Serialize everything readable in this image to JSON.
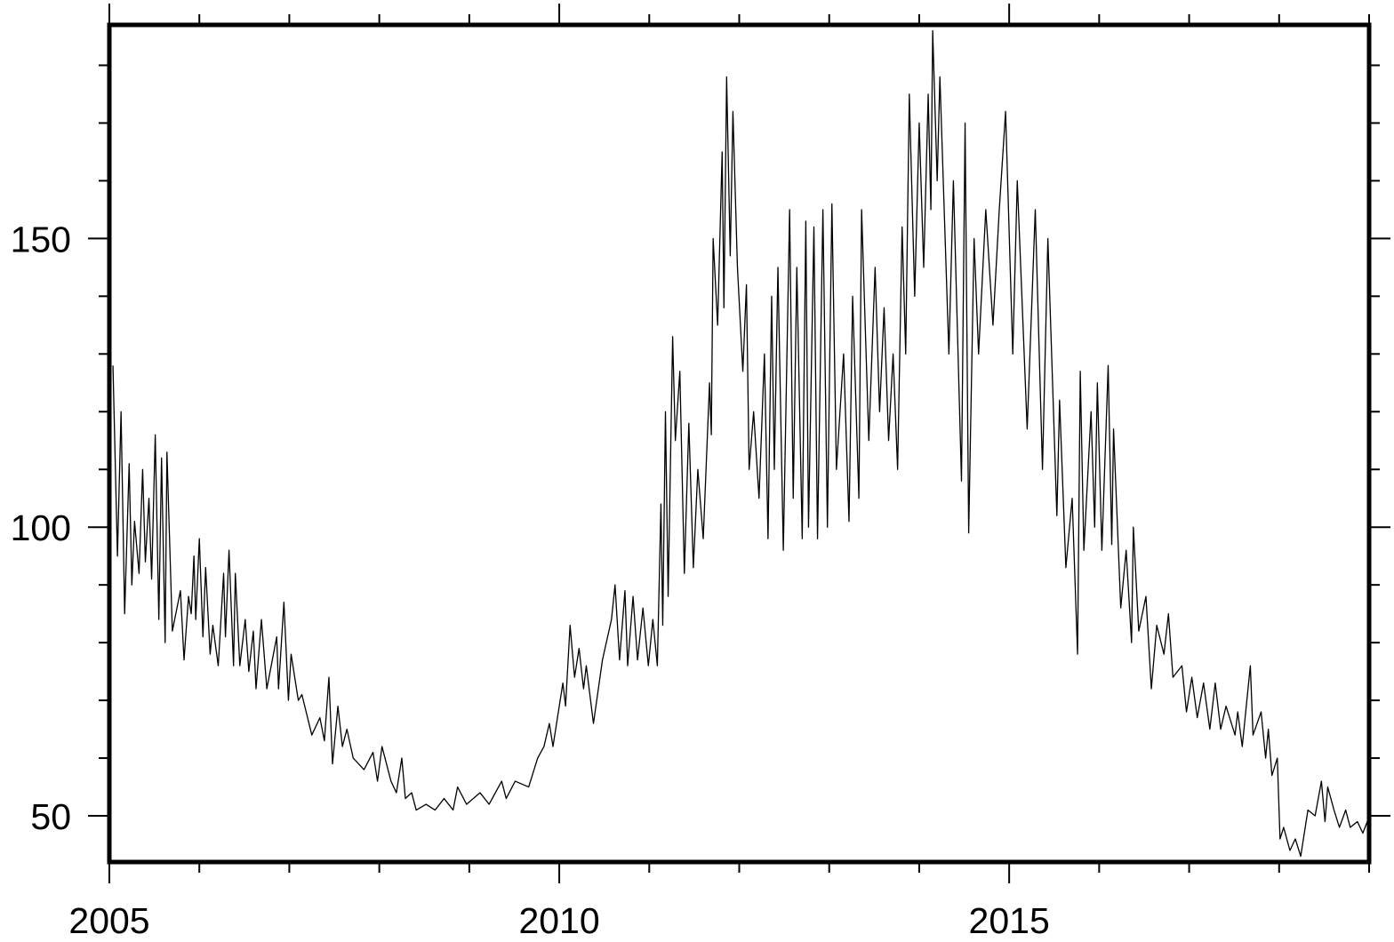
{
  "chart_data": {
    "type": "line",
    "x": [
      2005.04,
      2005.09,
      2005.13,
      2005.17,
      2005.22,
      2005.25,
      2005.28,
      2005.33,
      2005.37,
      2005.4,
      2005.44,
      2005.47,
      2005.51,
      2005.55,
      2005.58,
      2005.62,
      2005.64,
      2005.7,
      2005.79,
      2005.83,
      2005.88,
      2005.91,
      2005.94,
      2005.96,
      2006.0,
      2006.04,
      2006.07,
      2006.12,
      2006.15,
      2006.21,
      2006.27,
      2006.29,
      2006.33,
      2006.38,
      2006.4,
      2006.45,
      2006.51,
      2006.55,
      2006.6,
      2006.63,
      2006.69,
      2006.75,
      2006.86,
      2006.88,
      2006.94,
      2006.99,
      2007.02,
      2007.1,
      2007.14,
      2007.25,
      2007.34,
      2007.39,
      2007.44,
      2007.48,
      2007.54,
      2007.59,
      2007.64,
      2007.71,
      2007.83,
      2007.93,
      2007.98,
      2008.03,
      2008.13,
      2008.19,
      2008.25,
      2008.29,
      2008.36,
      2008.41,
      2008.52,
      2008.62,
      2008.72,
      2008.82,
      2008.87,
      2008.97,
      2009.12,
      2009.22,
      2009.36,
      2009.41,
      2009.51,
      2009.66,
      2009.76,
      2009.83,
      2009.89,
      2009.93,
      2010.04,
      2010.07,
      2010.12,
      2010.17,
      2010.22,
      2010.27,
      2010.3,
      2010.38,
      2010.48,
      2010.58,
      2010.62,
      2010.67,
      2010.73,
      2010.76,
      2010.82,
      2010.87,
      2010.93,
      2010.99,
      2011.04,
      2011.09,
      2011.13,
      2011.15,
      2011.18,
      2011.21,
      2011.26,
      2011.29,
      2011.34,
      2011.39,
      2011.44,
      2011.49,
      2011.54,
      2011.6,
      2011.67,
      2011.69,
      2011.71,
      2011.76,
      2011.81,
      2011.83,
      2011.86,
      2011.9,
      2011.93,
      2011.98,
      2012.04,
      2012.08,
      2012.11,
      2012.16,
      2012.22,
      2012.28,
      2012.32,
      2012.36,
      2012.39,
      2012.43,
      2012.49,
      2012.56,
      2012.6,
      2012.64,
      2012.7,
      2012.74,
      2012.77,
      2012.83,
      2012.87,
      2012.93,
      2012.98,
      2013.03,
      2013.08,
      2013.16,
      2013.22,
      2013.26,
      2013.33,
      2013.36,
      2013.44,
      2013.51,
      2013.56,
      2013.61,
      2013.66,
      2013.71,
      2013.76,
      2013.81,
      2013.85,
      2013.89,
      2013.95,
      2014.0,
      2014.05,
      2014.1,
      2014.13,
      2014.15,
      2014.2,
      2014.23,
      2014.33,
      2014.38,
      2014.47,
      2014.51,
      2014.55,
      2014.61,
      2014.66,
      2014.74,
      2014.82,
      2014.89,
      2014.96,
      2015.04,
      2015.09,
      2015.2,
      2015.29,
      2015.37,
      2015.43,
      2015.53,
      2015.56,
      2015.63,
      2015.7,
      2015.76,
      2015.79,
      2015.83,
      2015.91,
      2015.95,
      2015.98,
      2016.03,
      2016.1,
      2016.14,
      2016.16,
      2016.24,
      2016.3,
      2016.36,
      2016.38,
      2016.44,
      2016.52,
      2016.58,
      2016.64,
      2016.72,
      2016.77,
      2016.82,
      2016.92,
      2016.97,
      2017.03,
      2017.09,
      2017.16,
      2017.23,
      2017.29,
      2017.35,
      2017.41,
      2017.51,
      2017.54,
      2017.59,
      2017.68,
      2017.71,
      2017.8,
      2017.85,
      2017.88,
      2017.92,
      2017.98,
      2018.01,
      2018.05,
      2018.12,
      2018.18,
      2018.24,
      2018.32,
      2018.4,
      2018.47,
      2018.51,
      2018.54,
      2018.61,
      2018.67,
      2018.74,
      2018.79,
      2018.87,
      2018.93,
      2018.98
    ],
    "values": [
      128,
      95,
      120,
      85,
      111,
      90,
      101,
      92,
      110,
      94,
      105,
      91,
      116,
      84,
      112,
      80,
      113,
      82,
      89,
      77,
      88,
      85,
      95,
      84,
      98,
      81,
      93,
      78,
      83,
      76,
      92,
      81,
      96,
      76,
      92,
      76,
      84,
      75,
      82,
      72,
      84,
      72,
      81,
      72,
      87,
      70,
      78,
      70,
      71,
      64,
      67,
      63,
      74,
      59,
      69,
      62,
      65,
      60,
      58,
      61,
      56,
      62,
      56,
      54,
      60,
      53,
      54,
      51,
      52,
      51,
      53,
      51,
      55,
      52,
      54,
      52,
      56,
      53,
      56,
      55,
      60,
      62,
      66,
      62,
      73,
      69,
      83,
      74,
      79,
      72,
      76,
      66,
      77,
      84,
      90,
      77,
      89,
      76,
      88,
      77,
      86,
      76,
      84,
      76,
      104,
      83,
      120,
      88,
      133,
      115,
      127,
      92,
      118,
      93,
      110,
      98,
      125,
      116,
      150,
      135,
      165,
      138,
      178,
      147,
      172,
      145,
      127,
      142,
      110,
      120,
      105,
      130,
      98,
      140,
      110,
      145,
      96,
      155,
      105,
      145,
      98,
      153,
      100,
      152,
      98,
      155,
      100,
      156,
      110,
      130,
      101,
      140,
      105,
      155,
      115,
      145,
      120,
      138,
      115,
      130,
      110,
      152,
      130,
      175,
      140,
      170,
      145,
      175,
      155,
      186,
      160,
      178,
      130,
      160,
      108,
      170,
      99,
      150,
      130,
      155,
      135,
      155,
      172,
      130,
      160,
      117,
      155,
      110,
      150,
      102,
      122,
      93,
      105,
      78,
      127,
      96,
      120,
      100,
      125,
      96,
      128,
      97,
      117,
      86,
      96,
      80,
      100,
      82,
      88,
      72,
      83,
      78,
      85,
      74,
      76,
      68,
      74,
      67,
      73,
      65,
      73,
      65,
      69,
      64,
      68,
      62,
      76,
      64,
      68,
      60,
      65,
      57,
      60,
      46,
      48,
      44,
      46,
      43,
      51,
      50,
      56,
      49,
      55,
      51,
      48,
      51,
      48,
      49,
      47,
      49
    ],
    "color": "#000000",
    "xlim": [
      2005,
      2019
    ],
    "ylim": [
      42,
      187
    ],
    "xticks": [
      2005,
      2010,
      2015
    ],
    "xminorticks": [
      2006,
      2007,
      2008,
      2009,
      2011,
      2012,
      2013,
      2014,
      2016,
      2017,
      2018,
      2019
    ],
    "yticks": [
      50,
      100,
      150
    ],
    "yminorticks": [
      60,
      70,
      80,
      90,
      110,
      120,
      130,
      140,
      160,
      170,
      180
    ]
  }
}
